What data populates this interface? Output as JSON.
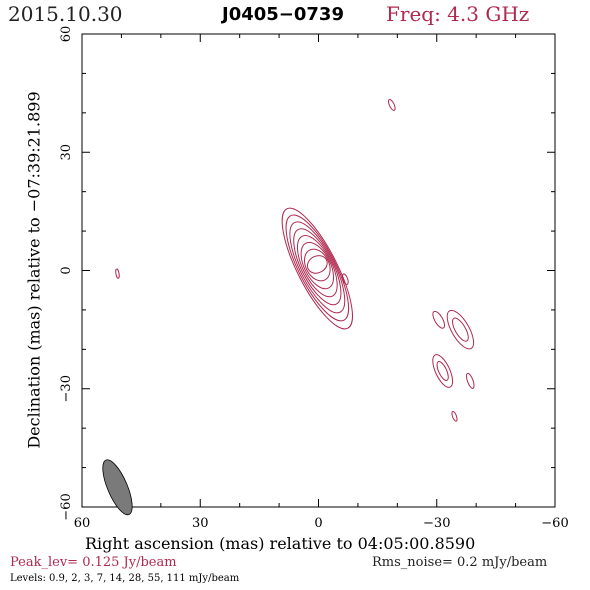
{
  "header": {
    "date": "2015.10.30",
    "source": "J0405−0739",
    "freq": "Freq: 4.3 GHz"
  },
  "chart_data": {
    "type": "contour",
    "xlabel": "Right ascension (mas) relative to 04:05:00.8590",
    "ylabel": "Declination (mas) relative to −07:39:21.899",
    "xlim": [
      60,
      -60
    ],
    "ylim": [
      -60,
      60
    ],
    "xticks": [
      60,
      30,
      0,
      -30,
      -60
    ],
    "yticks": [
      60,
      30,
      0,
      -30,
      -60
    ],
    "xtick_labels": [
      "60",
      "30",
      "0",
      "−30",
      "−60"
    ],
    "ytick_labels": [
      "60",
      "30",
      "0",
      "−30",
      "−60"
    ],
    "peak_level": "Peak_lev=  0.125 Jy/beam",
    "rms_noise": "Rms_noise=  0.2 mJy/beam",
    "levels_text": "Levels: 0.9,   2,   3,   7,  14,  28,  55, 111 mJy/beam",
    "levels_mJy": [
      0.9,
      2,
      3,
      7,
      14,
      28,
      55,
      111
    ],
    "contour_color": "#b0294f",
    "beam": {
      "ra": 51,
      "dec": -55,
      "major": 7.5,
      "minor": 2.5,
      "pa_deg": -23,
      "fill": "#7a7a7a"
    },
    "core": {
      "ra": 0.3,
      "dec": 0.5,
      "major_max": 17,
      "minor_max": 5,
      "pa_deg": -27,
      "rings": 8
    },
    "components": [
      {
        "name": "knot-east-small",
        "ra": -6.8,
        "dec": -2.2,
        "major": 1.4,
        "minor": 0.6,
        "pa": -20
      },
      {
        "name": "knot-north",
        "ra": -18.6,
        "dec": 42,
        "major": 1.5,
        "minor": 0.6,
        "pa": -25
      },
      {
        "name": "knot-west",
        "ra": 51,
        "dec": -0.8,
        "major": 1.2,
        "minor": 0.4,
        "pa": -10
      },
      {
        "name": "knot-se-1",
        "ra": -30.5,
        "dec": -12.5,
        "major": 2.4,
        "minor": 1.0,
        "pa": -30
      },
      {
        "name": "knot-se-3",
        "ra": -38.5,
        "dec": -28,
        "major": 2.0,
        "minor": 0.7,
        "pa": -20
      },
      {
        "name": "knot-se-4",
        "ra": -34.5,
        "dec": -37,
        "major": 1.3,
        "minor": 0.5,
        "pa": -20
      }
    ],
    "blobs": [
      {
        "name": "blob-se-a",
        "ra": -36,
        "dec": -15,
        "outer": [
          5.5,
          2.2
        ],
        "inner": [
          3.3,
          1.3
        ],
        "pa": -30
      },
      {
        "name": "blob-se-b",
        "ra": -31.5,
        "dec": -25.5,
        "outer": [
          4.5,
          1.8
        ],
        "inner": [
          2.6,
          1.0
        ],
        "pa": -25
      }
    ]
  }
}
